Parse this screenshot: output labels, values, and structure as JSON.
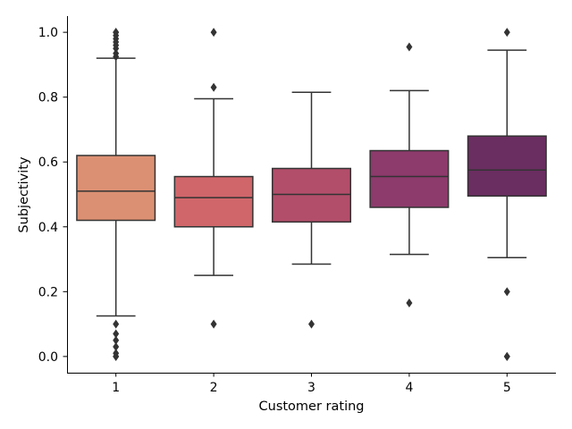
{
  "chart_data": {
    "type": "box",
    "xlabel": "Customer rating",
    "ylabel": "Subjectivity",
    "ylim": [
      -0.05,
      1.05
    ],
    "yticks": [
      "0.0",
      "0.2",
      "0.4",
      "0.6",
      "0.8",
      "1.0"
    ],
    "yticks_values": [
      0.0,
      0.2,
      0.4,
      0.6,
      0.8,
      1.0
    ],
    "grid": false,
    "categories": [
      "1",
      "2",
      "3",
      "4",
      "5"
    ],
    "series": [
      {
        "category": "1",
        "color": "#DC9073",
        "q1": 0.42,
        "median": 0.51,
        "q3": 0.62,
        "whisker_low": 0.125,
        "whisker_high": 0.92,
        "outliers": [
          0.0,
          0.0,
          0.01,
          0.03,
          0.05,
          0.07,
          0.1,
          0.925,
          0.935,
          0.95,
          0.96,
          0.97,
          0.98,
          0.99,
          1.0,
          1.0
        ]
      },
      {
        "category": "2",
        "color": "#D0666A",
        "q1": 0.4,
        "median": 0.49,
        "q3": 0.555,
        "whisker_low": 0.25,
        "whisker_high": 0.795,
        "outliers": [
          0.1,
          0.83,
          1.0
        ]
      },
      {
        "category": "3",
        "color": "#B24E6A",
        "q1": 0.415,
        "median": 0.5,
        "q3": 0.58,
        "whisker_low": 0.285,
        "whisker_high": 0.815,
        "outliers": [
          0.1
        ]
      },
      {
        "category": "4",
        "color": "#8D3A6C",
        "q1": 0.46,
        "median": 0.555,
        "q3": 0.635,
        "whisker_low": 0.315,
        "whisker_high": 0.82,
        "outliers": [
          0.165,
          0.955
        ]
      },
      {
        "category": "5",
        "color": "#6A2E60",
        "q1": 0.495,
        "median": 0.575,
        "q3": 0.68,
        "whisker_low": 0.305,
        "whisker_high": 0.945,
        "outliers": [
          0.0,
          0.0,
          0.2,
          1.0
        ]
      }
    ]
  }
}
